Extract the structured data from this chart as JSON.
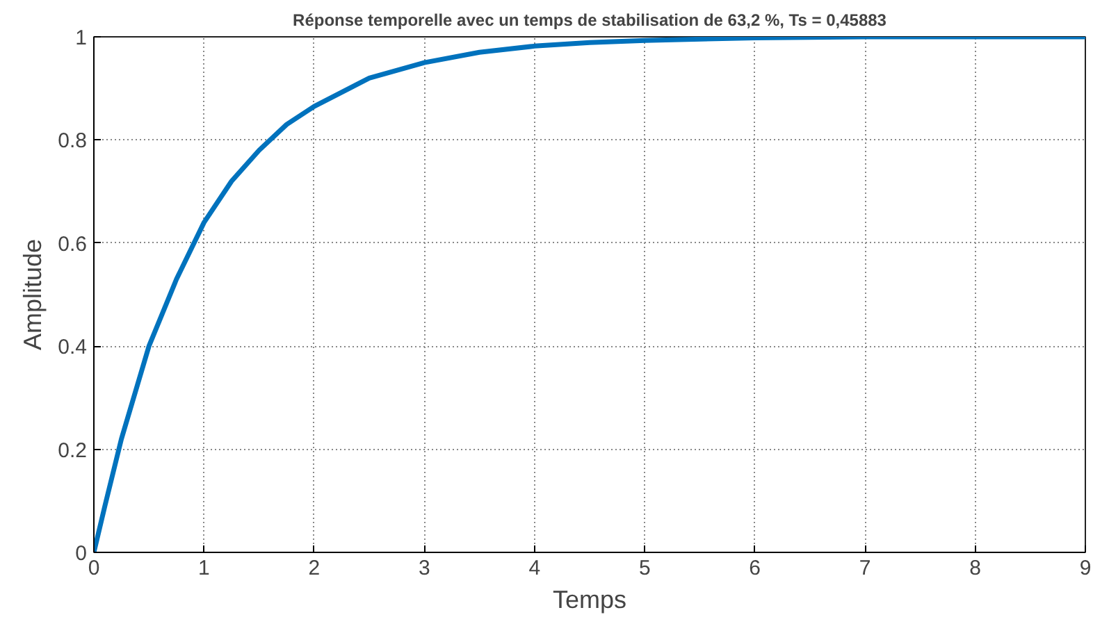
{
  "chart_data": {
    "type": "line",
    "title": "Réponse temporelle avec un temps de stabilisation de 63,2 %, Ts = 0,45883",
    "xlabel": "Temps",
    "ylabel": "Amplitude",
    "x": [
      0,
      0.1,
      0.25,
      0.5,
      0.75,
      1,
      1.25,
      1.5,
      1.75,
      2,
      2.5,
      3,
      3.5,
      4,
      4.5,
      5,
      6,
      7,
      8,
      9
    ],
    "series": [
      {
        "color": "#0072bd",
        "values": [
          0,
          0.09,
          0.22,
          0.4,
          0.53,
          0.64,
          0.72,
          0.78,
          0.83,
          0.865,
          0.92,
          0.95,
          0.97,
          0.982,
          0.989,
          0.993,
          0.998,
          1,
          1,
          1
        ]
      }
    ],
    "xlim": [
      0,
      9
    ],
    "ylim": [
      0,
      1
    ],
    "xticks": [
      0,
      1,
      2,
      3,
      4,
      5,
      6,
      7,
      8,
      9
    ],
    "yticks": [
      0,
      0.2,
      0.4,
      0.6,
      0.8,
      1
    ],
    "grid": true,
    "marker": "none",
    "line_style": "solid"
  }
}
